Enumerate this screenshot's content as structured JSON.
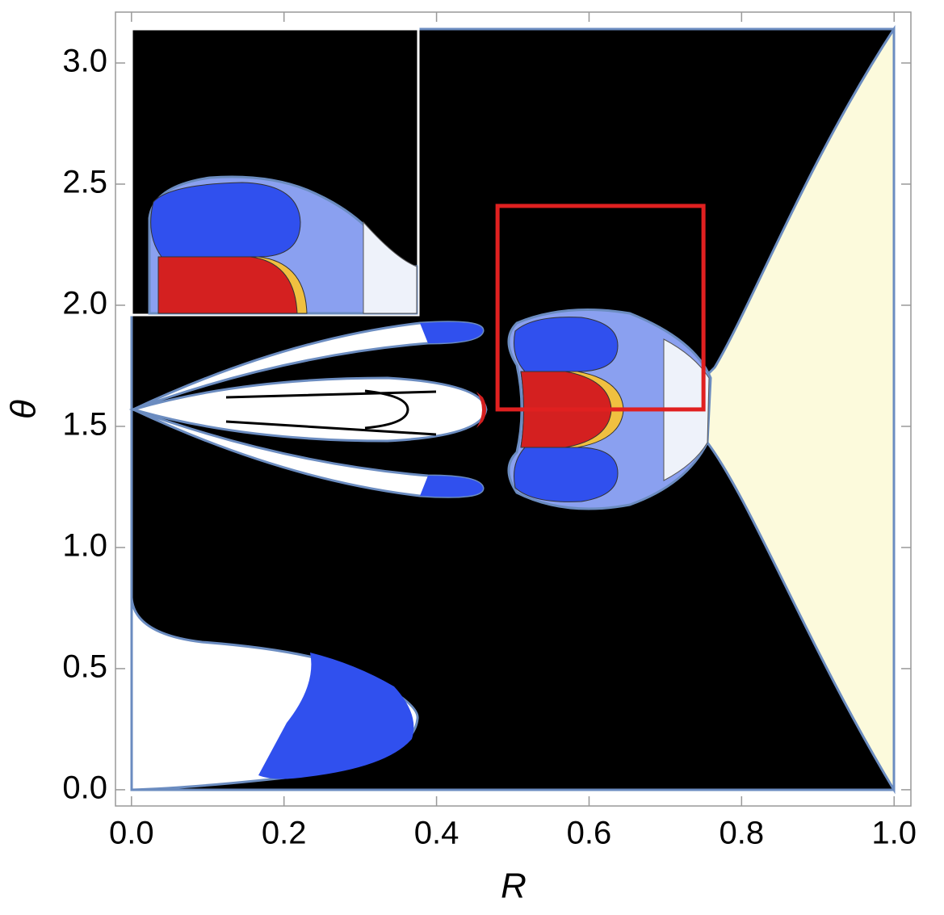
{
  "chart_data": {
    "type": "region",
    "x_label": "R",
    "y_label": "θ",
    "xlim": [
      -0.021,
      1.022
    ],
    "ylim": [
      -0.067,
      3.21
    ],
    "xticks": [
      {
        "value": 0,
        "label": "0.0"
      },
      0.2,
      0.4,
      0.6,
      0.8,
      {
        "value": 1,
        "label": "1.0"
      }
    ],
    "yticks": [
      {
        "value": 0,
        "label": "0.0"
      },
      0.5,
      {
        "value": 1,
        "label": "1.0"
      },
      1.5,
      {
        "value": 2,
        "label": "2.0"
      },
      2.5,
      {
        "value": 3,
        "label": "3.0"
      }
    ],
    "highlight_box": {
      "x": [
        0.48,
        0.75
      ],
      "y": [
        1.57,
        2.41
      ],
      "color": "#e02020"
    }
  }
}
